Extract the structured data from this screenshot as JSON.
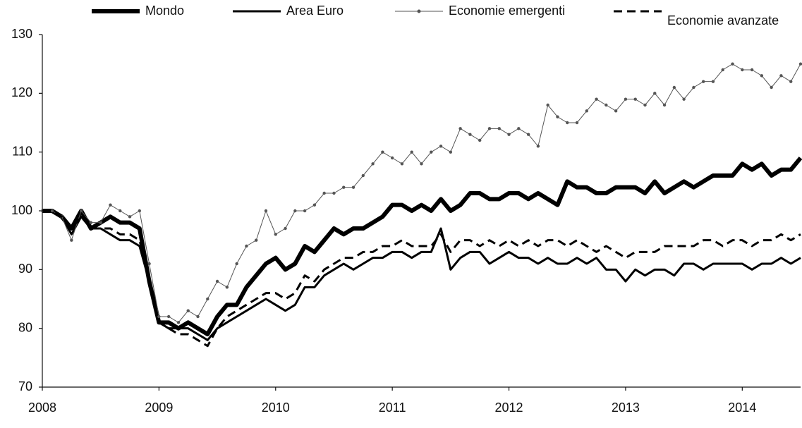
{
  "chart_data": {
    "type": "line",
    "categories": [
      "2008",
      null,
      null,
      null,
      null,
      null,
      null,
      null,
      null,
      null,
      null,
      null,
      "2009",
      null,
      null,
      null,
      null,
      null,
      null,
      null,
      null,
      null,
      null,
      null,
      "2010",
      null,
      null,
      null,
      null,
      null,
      null,
      null,
      null,
      null,
      null,
      null,
      "2011",
      null,
      null,
      null,
      null,
      null,
      null,
      null,
      null,
      null,
      null,
      null,
      "2012",
      null,
      null,
      null,
      null,
      null,
      null,
      null,
      null,
      null,
      null,
      null,
      "2013",
      null,
      null,
      null,
      null,
      null,
      null,
      null,
      null,
      null,
      null,
      null,
      "2014",
      null,
      null,
      null,
      null,
      null,
      null
    ],
    "ylim": [
      70,
      130
    ],
    "yticks": [
      70,
      80,
      90,
      100,
      110,
      120,
      130
    ],
    "grid": false,
    "legend": "top",
    "series": [
      {
        "name": "Mondo",
        "color": "#000000",
        "line_width": 6,
        "dash": false,
        "markers": false,
        "values": [
          100,
          100,
          99,
          97,
          100,
          97,
          98,
          99,
          98,
          98,
          97,
          88,
          81,
          81,
          80,
          81,
          80,
          79,
          82,
          84,
          84,
          87,
          89,
          91,
          92,
          90,
          91,
          94,
          93,
          95,
          97,
          96,
          97,
          97,
          98,
          99,
          101,
          101,
          100,
          101,
          100,
          102,
          100,
          101,
          103,
          103,
          102,
          102,
          103,
          103,
          102,
          103,
          102,
          101,
          105,
          104,
          104,
          103,
          103,
          104,
          104,
          104,
          103,
          105,
          103,
          104,
          105,
          104,
          105,
          106,
          106,
          106,
          108,
          107,
          108,
          106,
          107,
          107,
          109
        ]
      },
      {
        "name": "Area Euro",
        "color": "#000000",
        "line_width": 3,
        "dash": false,
        "markers": false,
        "values": [
          100,
          100,
          99,
          96,
          99,
          97,
          97,
          96,
          95,
          95,
          94,
          88,
          81,
          80,
          80,
          80,
          79,
          78,
          80,
          81,
          82,
          83,
          84,
          85,
          84,
          83,
          84,
          87,
          87,
          89,
          90,
          91,
          90,
          91,
          92,
          92,
          93,
          93,
          92,
          93,
          93,
          97,
          90,
          92,
          93,
          93,
          91,
          92,
          93,
          92,
          92,
          91,
          92,
          91,
          91,
          92,
          91,
          92,
          90,
          90,
          88,
          90,
          89,
          90,
          90,
          89,
          91,
          91,
          90,
          91,
          91,
          91,
          91,
          90,
          91,
          91,
          92,
          91,
          92
        ]
      },
      {
        "name": "Economie emergenti",
        "color": "#555555",
        "line_width": 1,
        "dash": false,
        "markers": true,
        "values": [
          100,
          100,
          99,
          95,
          100,
          98,
          98,
          101,
          100,
          99,
          100,
          91,
          82,
          82,
          81,
          83,
          82,
          85,
          88,
          87,
          91,
          94,
          95,
          100,
          96,
          97,
          100,
          100,
          101,
          103,
          103,
          104,
          104,
          106,
          108,
          110,
          109,
          108,
          110,
          108,
          110,
          111,
          110,
          114,
          113,
          112,
          114,
          114,
          113,
          114,
          113,
          111,
          118,
          116,
          115,
          115,
          117,
          119,
          118,
          117,
          119,
          119,
          118,
          120,
          118,
          121,
          119,
          121,
          122,
          122,
          124,
          125,
          124,
          124,
          123,
          121,
          123,
          122,
          125
        ]
      },
      {
        "name": "Economie avanzate",
        "color": "#000000",
        "line_width": 3,
        "dash": true,
        "markers": false,
        "values": [
          100,
          100,
          99,
          97,
          99,
          97,
          97,
          97,
          96,
          96,
          95,
          88,
          81,
          80,
          79,
          79,
          78,
          77,
          80,
          82,
          83,
          84,
          85,
          86,
          86,
          85,
          86,
          89,
          88,
          90,
          91,
          92,
          92,
          93,
          93,
          94,
          94,
          95,
          94,
          94,
          94,
          96,
          93,
          95,
          95,
          94,
          95,
          94,
          95,
          94,
          95,
          94,
          95,
          95,
          94,
          95,
          94,
          93,
          94,
          93,
          92,
          93,
          93,
          93,
          94,
          94,
          94,
          94,
          95,
          95,
          94,
          95,
          95,
          94,
          95,
          95,
          96,
          95,
          96
        ]
      }
    ]
  }
}
